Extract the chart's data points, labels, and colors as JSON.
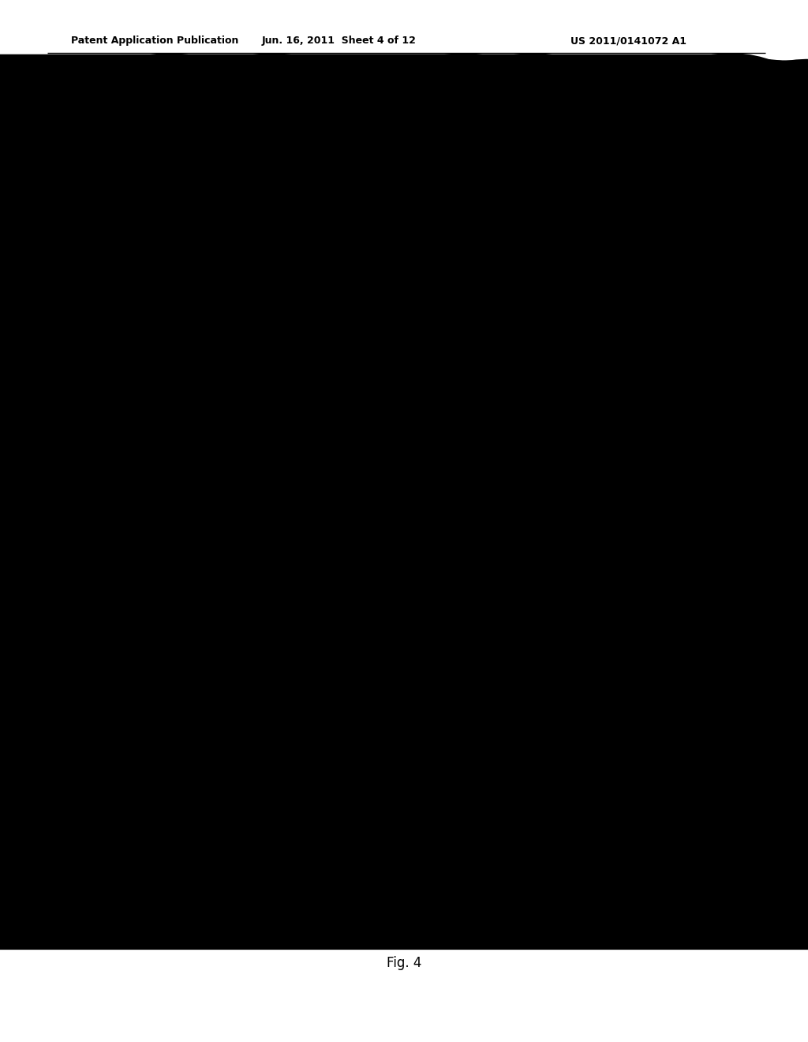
{
  "title": "Fig. 4",
  "header_left": "Patent Application Publication",
  "header_mid": "Jun. 16, 2011  Sheet 4 of 12",
  "header_right": "US 2011/0141072 A1",
  "background": "#ffffff",
  "text_color": "#000000"
}
